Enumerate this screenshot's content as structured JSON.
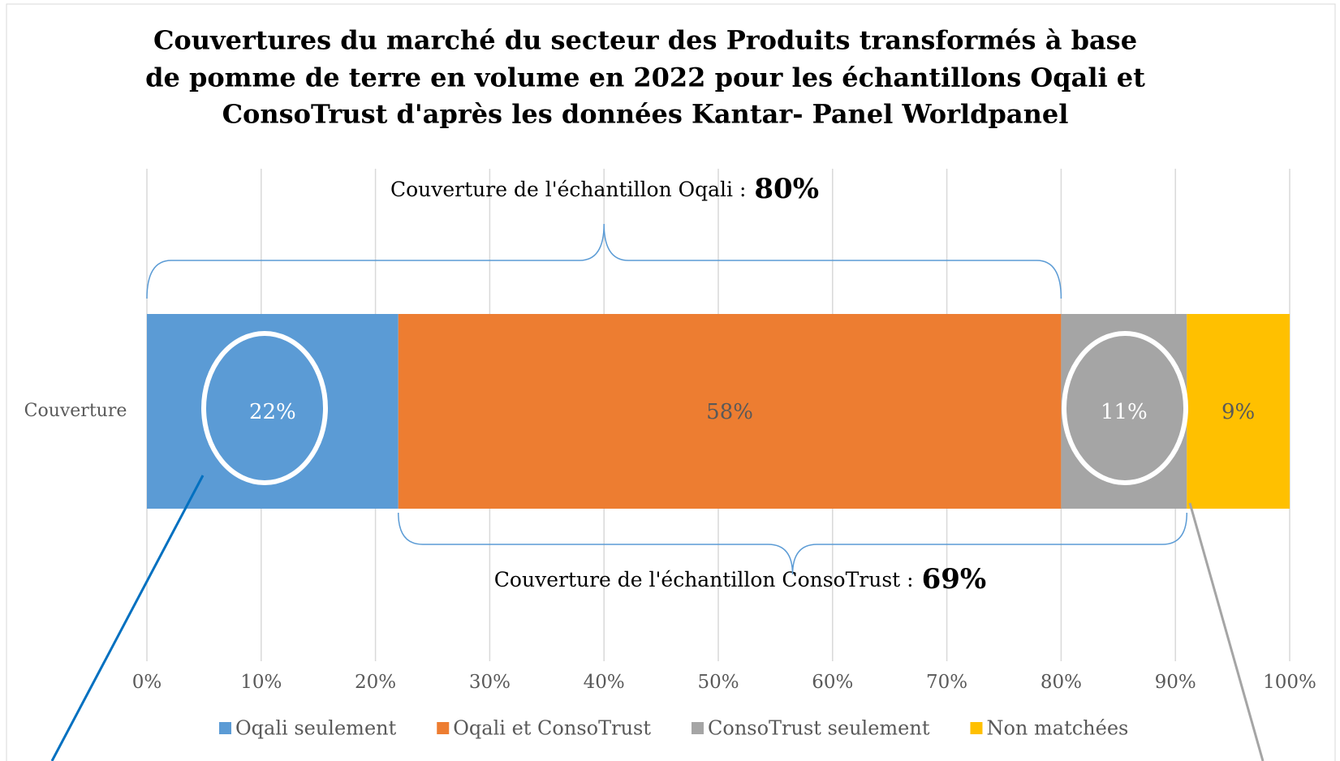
{
  "chart_data": {
    "type": "stacked_bar",
    "orientation": "horizontal",
    "title": [
      "Couvertures du marché du secteur des Produits transformés à base",
      "de pomme de terre en volume en 2022 pour les échantillons Oqali et",
      "ConsoTrust d'après les données Kantar- Panel Worldpanel"
    ],
    "categories": [
      "Couverture"
    ],
    "series": [
      {
        "name": "Oqali seulement",
        "color": "#5b9bd5",
        "values": [
          22
        ],
        "value_labels": [
          "22%"
        ]
      },
      {
        "name": "Oqali et ConsoTrust",
        "color": "#ed7d31",
        "values": [
          58
        ],
        "value_labels": [
          "58%"
        ]
      },
      {
        "name": "ConsoTrust seulement",
        "color": "#a5a5a5",
        "values": [
          11
        ],
        "value_labels": [
          "11%"
        ]
      },
      {
        "name": "Non matchées",
        "color": "#ffc000",
        "values": [
          9
        ],
        "value_labels": [
          "9%"
        ]
      }
    ],
    "xlim": [
      0,
      100
    ],
    "xticks": [
      {
        "value": 0,
        "label": "0%"
      },
      {
        "value": 10,
        "label": "10%"
      },
      {
        "value": 20,
        "label": "20%"
      },
      {
        "value": 30,
        "label": "30%"
      },
      {
        "value": 40,
        "label": "40%"
      },
      {
        "value": 50,
        "label": "50%"
      },
      {
        "value": 60,
        "label": "60%"
      },
      {
        "value": 70,
        "label": "70%"
      },
      {
        "value": 80,
        "label": "80%"
      },
      {
        "value": 90,
        "label": "90%"
      },
      {
        "value": 100,
        "label": "100%"
      }
    ],
    "grid": true,
    "legend": "bottom",
    "annotations": [
      {
        "text": "Couverture de l'échantillon Oqali :",
        "value": 80,
        "value_label": "80%"
      },
      {
        "text": "Couverture de l'échantillon ConsoTrust :",
        "value": 69,
        "value_label": "69%"
      }
    ]
  }
}
